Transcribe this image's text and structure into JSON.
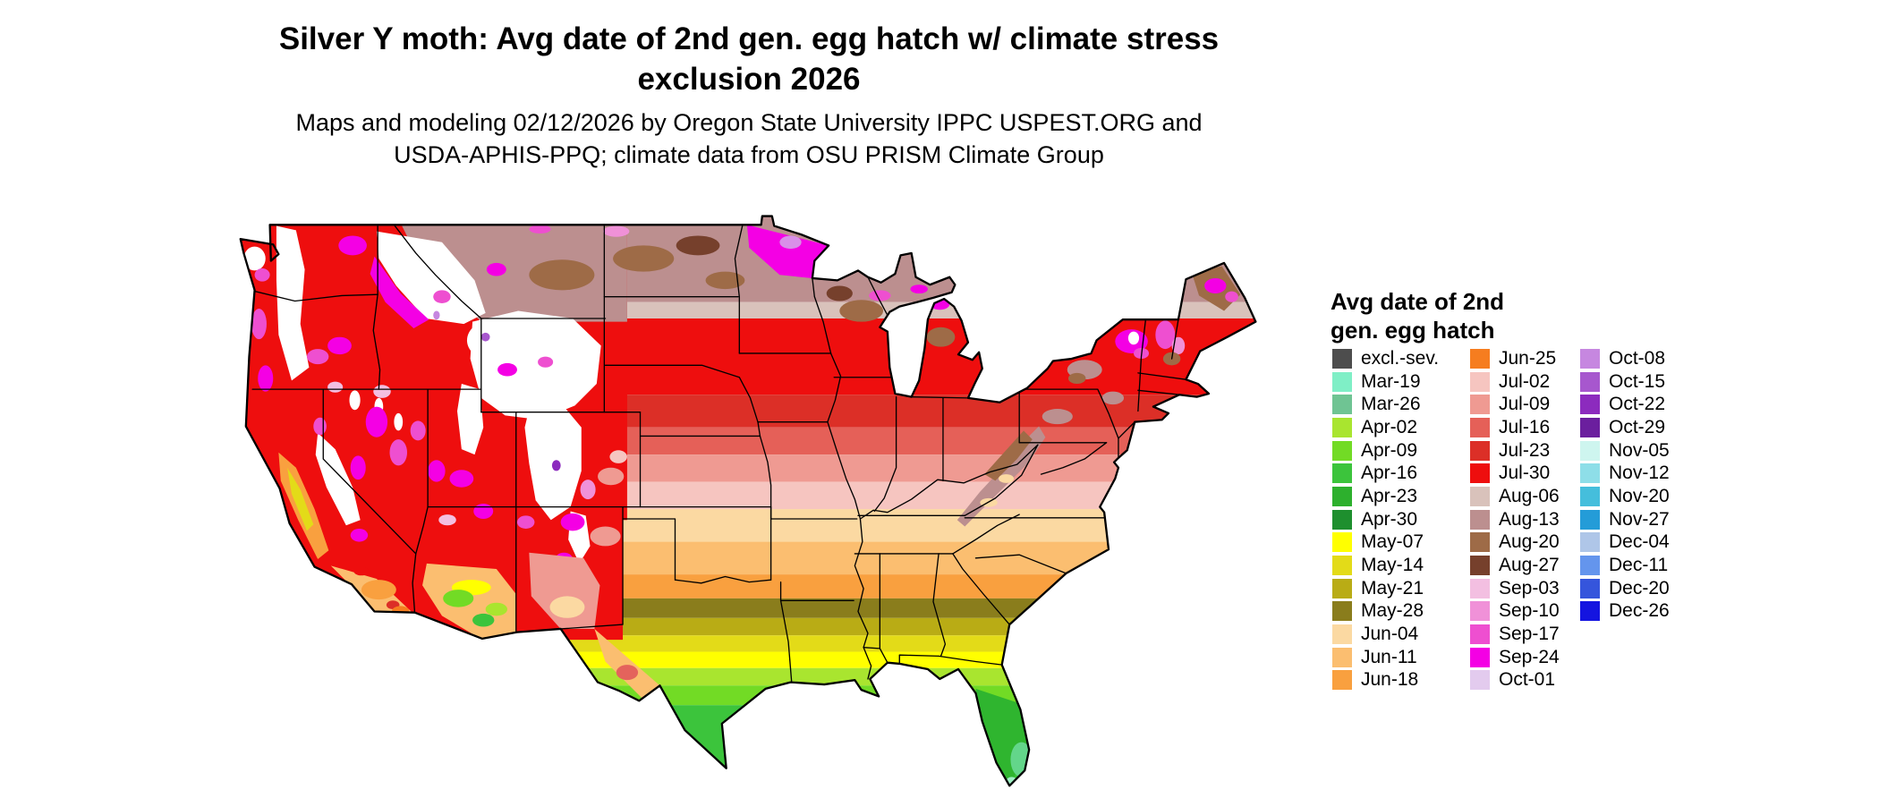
{
  "title": {
    "line1": "Silver Y moth: Avg date of 2nd gen. egg hatch w/ climate stress",
    "line2": "exclusion 2026"
  },
  "subtitle": {
    "line1": "Maps and modeling 02/12/2026 by Oregon State University IPPC USPEST.ORG and",
    "line2": "USDA-APHIS-PPQ; climate data from OSU PRISM Climate Group"
  },
  "legend": {
    "title_line1": "Avg date of 2nd",
    "title_line2": "gen. egg hatch",
    "columns": [
      [
        {
          "label": "excl.-sev.",
          "color": "#4D4D4D"
        },
        {
          "label": "Mar-19",
          "color": "#7FEFC6"
        },
        {
          "label": "Mar-26",
          "color": "#6FC493"
        },
        {
          "label": "Apr-02",
          "color": "#A9E52F"
        },
        {
          "label": "Apr-09",
          "color": "#72DB25"
        },
        {
          "label": "Apr-16",
          "color": "#3CC43C"
        },
        {
          "label": "Apr-23",
          "color": "#2DB02D"
        },
        {
          "label": "Apr-30",
          "color": "#1E8F2E"
        },
        {
          "label": "May-07",
          "color": "#FFFF00"
        },
        {
          "label": "May-14",
          "color": "#E3DB18"
        },
        {
          "label": "May-21",
          "color": "#B9AC15"
        },
        {
          "label": "May-28",
          "color": "#8A7D1C"
        },
        {
          "label": "Jun-04",
          "color": "#FBD9A2"
        },
        {
          "label": "Jun-11",
          "color": "#FBBE70"
        },
        {
          "label": "Jun-18",
          "color": "#F9A03F"
        }
      ],
      [
        {
          "label": "Jun-25",
          "color": "#F67D1F"
        },
        {
          "label": "Jul-02",
          "color": "#F6C5C0"
        },
        {
          "label": "Jul-09",
          "color": "#EF9A92"
        },
        {
          "label": "Jul-16",
          "color": "#E56058"
        },
        {
          "label": "Jul-23",
          "color": "#DC2F27"
        },
        {
          "label": "Jul-30",
          "color": "#EE0E0E"
        },
        {
          "label": "Aug-06",
          "color": "#D9C2BB"
        },
        {
          "label": "Aug-13",
          "color": "#BC8F8F"
        },
        {
          "label": "Aug-20",
          "color": "#9E6B47"
        },
        {
          "label": "Aug-27",
          "color": "#76402C"
        },
        {
          "label": "Sep-03",
          "color": "#F3BFE1"
        },
        {
          "label": "Sep-10",
          "color": "#F091D8"
        },
        {
          "label": "Sep-17",
          "color": "#EE4FD0"
        },
        {
          "label": "Sep-24",
          "color": "#F400E4"
        },
        {
          "label": "Oct-01",
          "color": "#E3CBEE"
        }
      ],
      [
        {
          "label": "Oct-08",
          "color": "#C687E0"
        },
        {
          "label": "Oct-15",
          "color": "#A757CE"
        },
        {
          "label": "Oct-22",
          "color": "#8C2BBE"
        },
        {
          "label": "Oct-29",
          "color": "#6B1F9E"
        },
        {
          "label": "Nov-05",
          "color": "#CEF5EF"
        },
        {
          "label": "Nov-12",
          "color": "#8EDEE8"
        },
        {
          "label": "Nov-20",
          "color": "#45BEDC"
        },
        {
          "label": "Nov-27",
          "color": "#249CD8"
        },
        {
          "label": "Dec-04",
          "color": "#AFC6E8"
        },
        {
          "label": "Dec-11",
          "color": "#6495ED"
        },
        {
          "label": "Dec-20",
          "color": "#3555DC"
        },
        {
          "label": "Dec-26",
          "color": "#1414E0"
        }
      ]
    ]
  }
}
